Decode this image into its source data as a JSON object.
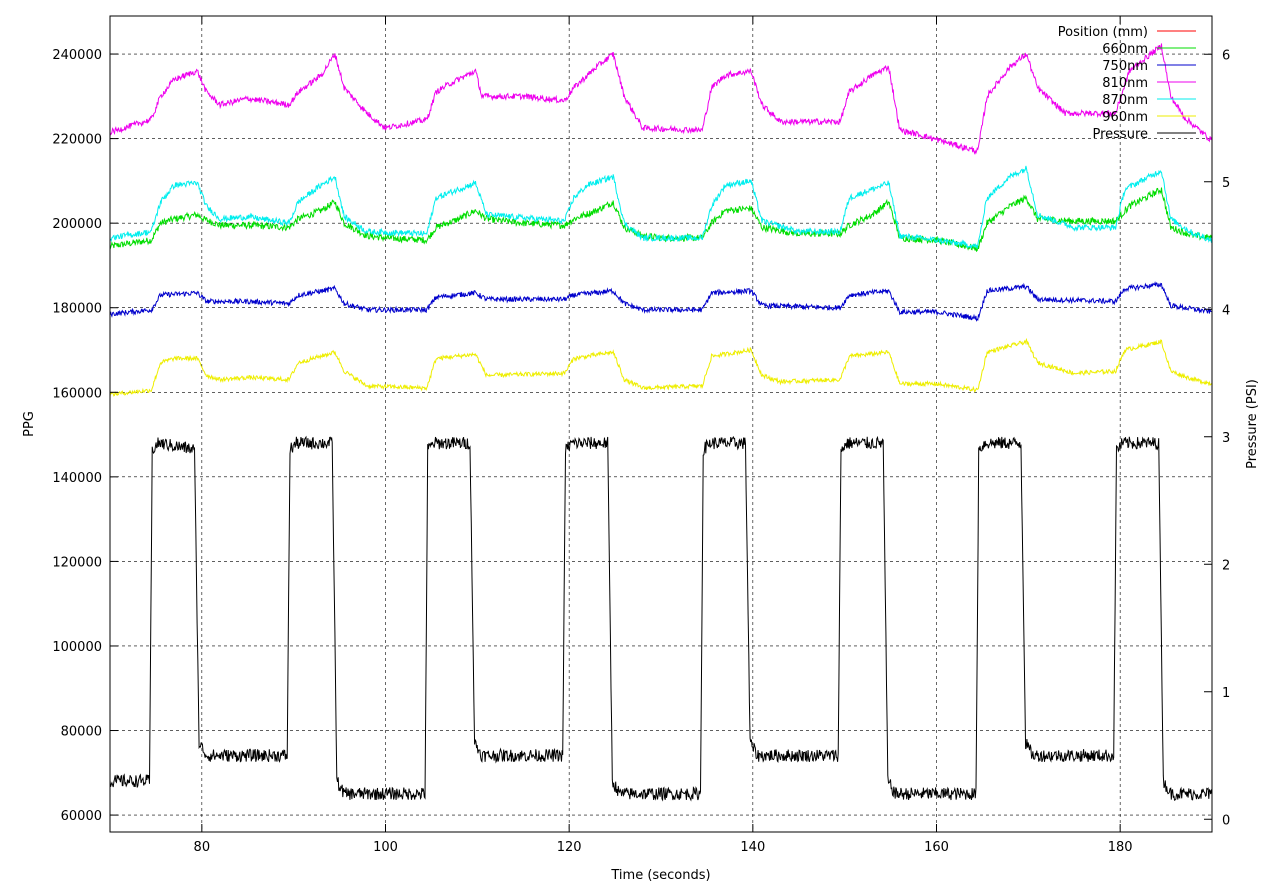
{
  "chart_data": {
    "type": "line",
    "xlabel": "Time (seconds)",
    "ylabel": "PPG",
    "y2label": "Pressure (PSI)",
    "xlim": [
      70,
      190
    ],
    "ylim": [
      56000,
      249000
    ],
    "y2lim": [
      -0.1,
      6.3
    ],
    "x_ticks": [
      80,
      100,
      120,
      140,
      160,
      180
    ],
    "y_ticks": [
      60000,
      80000,
      100000,
      120000,
      140000,
      160000,
      180000,
      200000,
      220000,
      240000
    ],
    "y2_ticks": [
      0,
      1,
      2,
      3,
      4,
      5,
      6
    ],
    "grid": true,
    "legend_position": "top-right",
    "series": [
      {
        "name": "Position (mm)",
        "color": "#ff0000",
        "axis": "y",
        "x": [],
        "y": []
      },
      {
        "name": "660nm",
        "color": "#00dd00",
        "axis": "y",
        "noise": 800,
        "x": [
          70,
          74.5,
          75.5,
          77,
          79.5,
          80.2,
          82,
          85,
          89.5,
          90.5,
          93,
          94.5,
          95.5,
          98,
          100,
          104.5,
          105.5,
          108,
          109.8,
          111,
          115,
          119.5,
          120.5,
          123,
          124.8,
          126,
          128,
          130,
          134.5,
          135.5,
          137,
          139.8,
          141,
          145,
          149.5,
          150.5,
          153,
          154.8,
          156,
          160,
          164.5,
          165.5,
          168,
          169.8,
          171,
          175,
          179.5,
          181,
          184.5,
          185.5,
          188,
          190
        ],
        "y": [
          194500,
          196000,
          200000,
          201000,
          202000,
          201000,
          199500,
          199500,
          199000,
          201000,
          203000,
          205000,
          200000,
          197000,
          196500,
          196000,
          199000,
          201000,
          203000,
          201000,
          200000,
          199500,
          201000,
          203000,
          205000,
          199000,
          197000,
          196500,
          196500,
          200000,
          203000,
          203500,
          199000,
          197500,
          197500,
          199500,
          202000,
          205000,
          196500,
          196000,
          194000,
          200000,
          204000,
          206000,
          201000,
          200500,
          200500,
          204000,
          208000,
          199000,
          197000,
          196500
        ]
      },
      {
        "name": "750nm",
        "color": "#0000cc",
        "axis": "y",
        "noise": 600,
        "x": [
          70,
          74.5,
          75.5,
          79.5,
          80.5,
          85,
          89.5,
          90.5,
          94.5,
          95.5,
          98,
          104.5,
          105.5,
          109.8,
          111,
          119.5,
          120.5,
          124.8,
          126,
          128,
          134.5,
          135.5,
          139.8,
          141,
          149.5,
          150.5,
          154.8,
          156,
          160,
          164.5,
          165.5,
          169.8,
          171,
          179.5,
          180.5,
          184.5,
          185.5,
          190
        ],
        "y": [
          178500,
          179500,
          183000,
          183500,
          181500,
          181500,
          181000,
          183000,
          184500,
          181000,
          179500,
          179500,
          182500,
          183500,
          182000,
          182000,
          183000,
          184000,
          181000,
          179500,
          179500,
          183500,
          184000,
          180500,
          180000,
          183000,
          184000,
          179000,
          179000,
          177500,
          184000,
          185000,
          182000,
          181500,
          184500,
          185500,
          180500,
          179000
        ]
      },
      {
        "name": "810nm",
        "color": "#ee00ee",
        "axis": "y",
        "noise": 700,
        "x": [
          70,
          74.5,
          75.5,
          77,
          79.5,
          80.5,
          82,
          85,
          89.5,
          90.5,
          93,
          94.5,
          95.5,
          98,
          100,
          104.5,
          105.5,
          107,
          109.8,
          110.5,
          115,
          119.5,
          120.5,
          123,
          124.8,
          126,
          128,
          134.5,
          135.5,
          137,
          139.8,
          141,
          143,
          149.5,
          150.5,
          153,
          154.8,
          156,
          158,
          164.5,
          165.5,
          168,
          169.8,
          171,
          174,
          179.5,
          181,
          184.5,
          185.5,
          187,
          190
        ],
        "y": [
          221500,
          224500,
          230000,
          234000,
          236000,
          231000,
          228000,
          229500,
          228000,
          231000,
          235000,
          240000,
          232000,
          226000,
          222500,
          224500,
          231000,
          233000,
          236000,
          230000,
          230000,
          229000,
          232000,
          237000,
          240000,
          230000,
          222500,
          222000,
          232000,
          235000,
          236000,
          228000,
          224000,
          224000,
          231000,
          235000,
          237000,
          222000,
          221000,
          217000,
          230000,
          237000,
          240000,
          232000,
          226000,
          226000,
          236000,
          242000,
          230000,
          225000,
          219500
        ]
      },
      {
        "name": "870nm",
        "color": "#00eeee",
        "axis": "y",
        "noise": 700,
        "x": [
          70,
          74.5,
          75.5,
          77,
          79.5,
          80.5,
          82,
          85,
          89.5,
          90.5,
          93,
          94.5,
          95.5,
          98,
          104.5,
          105.5,
          109.8,
          111,
          119.5,
          120.5,
          122,
          124.8,
          126,
          128,
          134.5,
          135.5,
          137,
          139.8,
          141,
          145,
          149.5,
          150.5,
          154.8,
          156,
          160,
          164.5,
          165.5,
          168,
          169.8,
          171,
          175,
          179.5,
          180.5,
          184.5,
          185.5,
          188,
          190
        ],
        "y": [
          196500,
          198000,
          205000,
          209000,
          209500,
          204000,
          201000,
          201500,
          200000,
          205000,
          209000,
          211000,
          201500,
          198000,
          197500,
          206000,
          209500,
          202000,
          200500,
          206000,
          209000,
          211000,
          200000,
          196500,
          196500,
          204000,
          209000,
          210000,
          200500,
          198000,
          198000,
          206000,
          209500,
          197000,
          196000,
          194500,
          206000,
          211000,
          213000,
          202000,
          199000,
          199000,
          208000,
          212500,
          201000,
          197500,
          196000
        ]
      },
      {
        "name": "960nm",
        "color": "#eeee00",
        "axis": "y",
        "noise": 500,
        "x": [
          70,
          74.5,
          75.5,
          77,
          79.5,
          80.5,
          82,
          85,
          89.5,
          90.5,
          94.5,
          95.5,
          98,
          104.5,
          105.5,
          109.8,
          111,
          119.5,
          120.5,
          124.8,
          126,
          128,
          134.5,
          135.5,
          139.8,
          141,
          143,
          149.5,
          150.5,
          154.8,
          156,
          160,
          164.5,
          165.5,
          169.8,
          171,
          175,
          179.5,
          180.5,
          184.5,
          185.5,
          188,
          190
        ],
        "y": [
          159500,
          160500,
          167000,
          168000,
          168000,
          164000,
          163000,
          163500,
          163000,
          167000,
          169500,
          165000,
          161500,
          161000,
          168000,
          169000,
          164000,
          164500,
          168000,
          169500,
          163000,
          161000,
          161500,
          168500,
          170000,
          164000,
          162500,
          163000,
          168500,
          169500,
          162000,
          162000,
          160500,
          169500,
          172000,
          167000,
          164500,
          165000,
          170000,
          172000,
          165000,
          163000,
          162000
        ]
      },
      {
        "name": "Pressure",
        "color": "#000000",
        "axis": "y2",
        "noise": 0.05,
        "x": [
          70,
          74.3,
          74.6,
          75.3,
          79.2,
          79.7,
          80.5,
          89.3,
          89.6,
          90.3,
          94.2,
          94.7,
          95.5,
          104.3,
          104.6,
          105.3,
          109.2,
          109.7,
          110.5,
          119.3,
          119.6,
          120.3,
          124.2,
          124.7,
          125.5,
          134.3,
          134.6,
          135.3,
          139.2,
          139.7,
          140.5,
          149.3,
          149.6,
          150.3,
          154.2,
          154.7,
          155.5,
          164.3,
          164.6,
          165.3,
          169.2,
          169.7,
          170.5,
          179.3,
          179.6,
          180.3,
          184.2,
          184.7,
          185.5,
          190
        ],
        "y": [
          0.3,
          0.3,
          2.9,
          2.95,
          2.9,
          0.6,
          0.5,
          0.5,
          2.9,
          2.95,
          2.95,
          0.3,
          0.2,
          0.2,
          2.9,
          2.95,
          2.95,
          0.6,
          0.5,
          0.5,
          2.9,
          2.95,
          2.95,
          0.3,
          0.2,
          0.2,
          2.9,
          2.95,
          2.95,
          0.6,
          0.5,
          0.5,
          2.9,
          2.95,
          2.95,
          0.3,
          0.2,
          0.2,
          2.9,
          2.95,
          2.95,
          0.6,
          0.5,
          0.5,
          2.9,
          2.95,
          2.95,
          0.3,
          0.2,
          0.2
        ]
      }
    ]
  }
}
